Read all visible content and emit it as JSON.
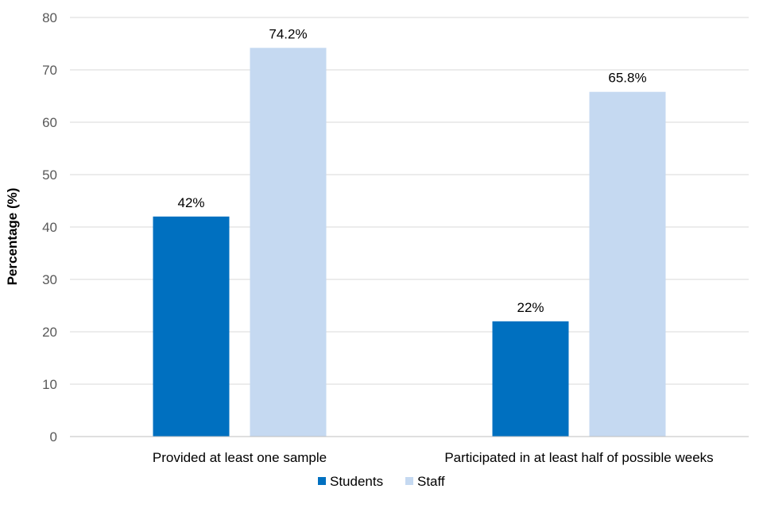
{
  "chart_data": {
    "type": "bar",
    "title": "",
    "xlabel": "",
    "ylabel": "Percentage (%)",
    "ylim": [
      0,
      80
    ],
    "yticks": [
      0,
      10,
      20,
      30,
      40,
      50,
      60,
      70,
      80
    ],
    "grid": true,
    "legend_position": "bottom",
    "categories": [
      "Provided at least one sample",
      "Participated in at least half of possible weeks"
    ],
    "series": [
      {
        "name": "Students",
        "color": "#0070C0",
        "values": [
          42,
          22
        ],
        "labels": [
          "42%",
          "22%"
        ]
      },
      {
        "name": "Staff",
        "color": "#C5D9F1",
        "values": [
          74.2,
          65.8
        ],
        "labels": [
          "74.2%",
          "65.8%"
        ]
      }
    ]
  }
}
